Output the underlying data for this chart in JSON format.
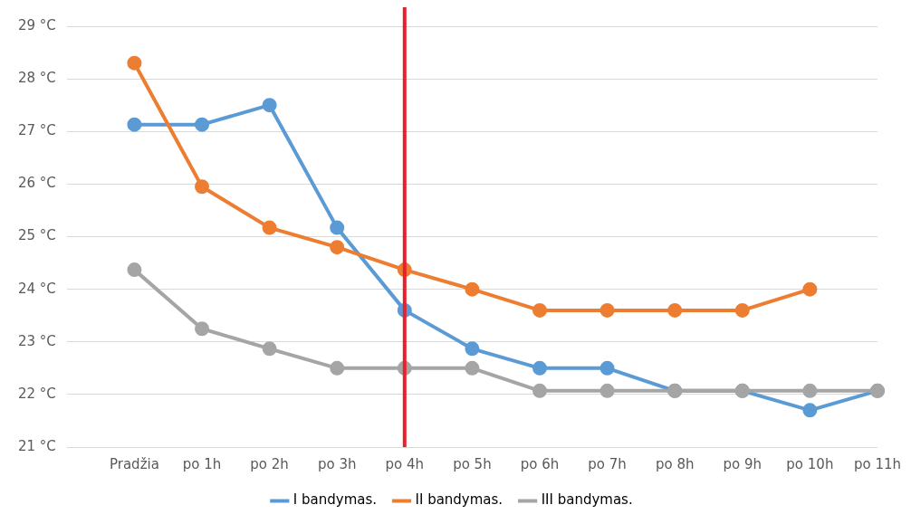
{
  "chart_data": {
    "type": "line",
    "categories": [
      null,
      "Pradžia",
      "po 1h",
      "po 2h",
      "po 3h",
      "po 4h",
      "po 5h",
      "po 6h",
      "po 7h",
      "po 8h",
      "po 9h",
      "po 10h",
      "po 11h"
    ],
    "series": [
      {
        "name": "I bandymas.",
        "color": "#5b9bd5",
        "values": [
          null,
          27.13,
          27.13,
          27.5,
          25.17,
          23.6,
          22.87,
          22.5,
          22.5,
          22.07,
          22.07,
          21.7,
          22.07
        ]
      },
      {
        "name": "II bandymas.",
        "color": "#ed7d31",
        "values": [
          null,
          28.3,
          25.95,
          25.17,
          24.8,
          24.37,
          24.0,
          23.6,
          23.6,
          23.6,
          23.6,
          24.0,
          null
        ]
      },
      {
        "name": "III bandymas.",
        "color": "#a5a5a5",
        "values": [
          null,
          24.37,
          23.25,
          22.87,
          22.5,
          22.5,
          22.5,
          22.07,
          22.07,
          22.07,
          22.07,
          22.07,
          22.07
        ]
      }
    ],
    "ylim": [
      21,
      29
    ],
    "yticks": [
      {
        "value": 21,
        "label": "21 °C"
      },
      {
        "value": 22,
        "label": "22 °C"
      },
      {
        "value": 23,
        "label": "23 °C"
      },
      {
        "value": 24,
        "label": "24 °C"
      },
      {
        "value": 25,
        "label": "25 °C"
      },
      {
        "value": 26,
        "label": "26 °C"
      },
      {
        "value": 27,
        "label": "27 °C"
      },
      {
        "value": 28,
        "label": "28 °C"
      },
      {
        "value": 29,
        "label": "29 °C"
      }
    ],
    "ref_lines": [
      {
        "axis": "x",
        "value": "po 4h",
        "color": "#e8202a"
      }
    ],
    "grid": "y",
    "legend": "bottom",
    "marker": "circle",
    "line_style": "solid"
  }
}
